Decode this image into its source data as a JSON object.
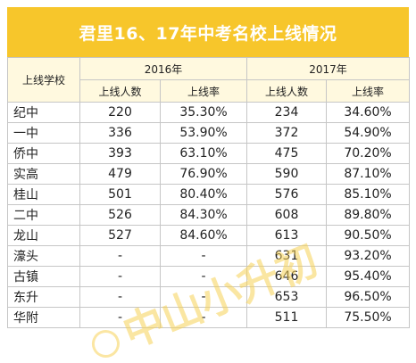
{
  "title": "君里16、17年中考名校上线情况",
  "header": {
    "school_col": "上线学校",
    "year_2016": "2016年",
    "year_2017": "2017年",
    "count_label": "上线人数",
    "rate_label": "上线率"
  },
  "rows": [
    {
      "school": "纪中",
      "c16": "220",
      "r16": "35.30%",
      "c17": "234",
      "r17": "34.60%"
    },
    {
      "school": "一中",
      "c16": "336",
      "r16": "53.90%",
      "c17": "372",
      "r17": "54.90%"
    },
    {
      "school": "侨中",
      "c16": "393",
      "r16": "63.10%",
      "c17": "475",
      "r17": "70.20%"
    },
    {
      "school": "实高",
      "c16": "479",
      "r16": "76.90%",
      "c17": "590",
      "r17": "87.10%"
    },
    {
      "school": "桂山",
      "c16": "501",
      "r16": "80.40%",
      "c17": "576",
      "r17": "85.10%"
    },
    {
      "school": "二中",
      "c16": "526",
      "r16": "84.30%",
      "c17": "608",
      "r17": "89.80%"
    },
    {
      "school": "龙山",
      "c16": "527",
      "r16": "84.60%",
      "c17": "613",
      "r17": "90.50%"
    },
    {
      "school": "濠头",
      "c16": "-",
      "r16": "-",
      "c17": "631",
      "r17": "93.20%"
    },
    {
      "school": "古镇",
      "c16": "-",
      "r16": "-",
      "c17": "646",
      "r17": "95.40%"
    },
    {
      "school": "东升",
      "c16": "-",
      "r16": "-",
      "c17": "653",
      "r17": "96.50%"
    },
    {
      "school": "华附",
      "c16": "-",
      "r16": "-",
      "c17": "511",
      "r17": "75.50%"
    }
  ],
  "watermark": {
    "text": "中山小升初",
    "color": "#f7d257"
  },
  "colors": {
    "title_bg": "#f7c62b",
    "header_bg": "#fff9df",
    "border": "#c6c6c6"
  }
}
